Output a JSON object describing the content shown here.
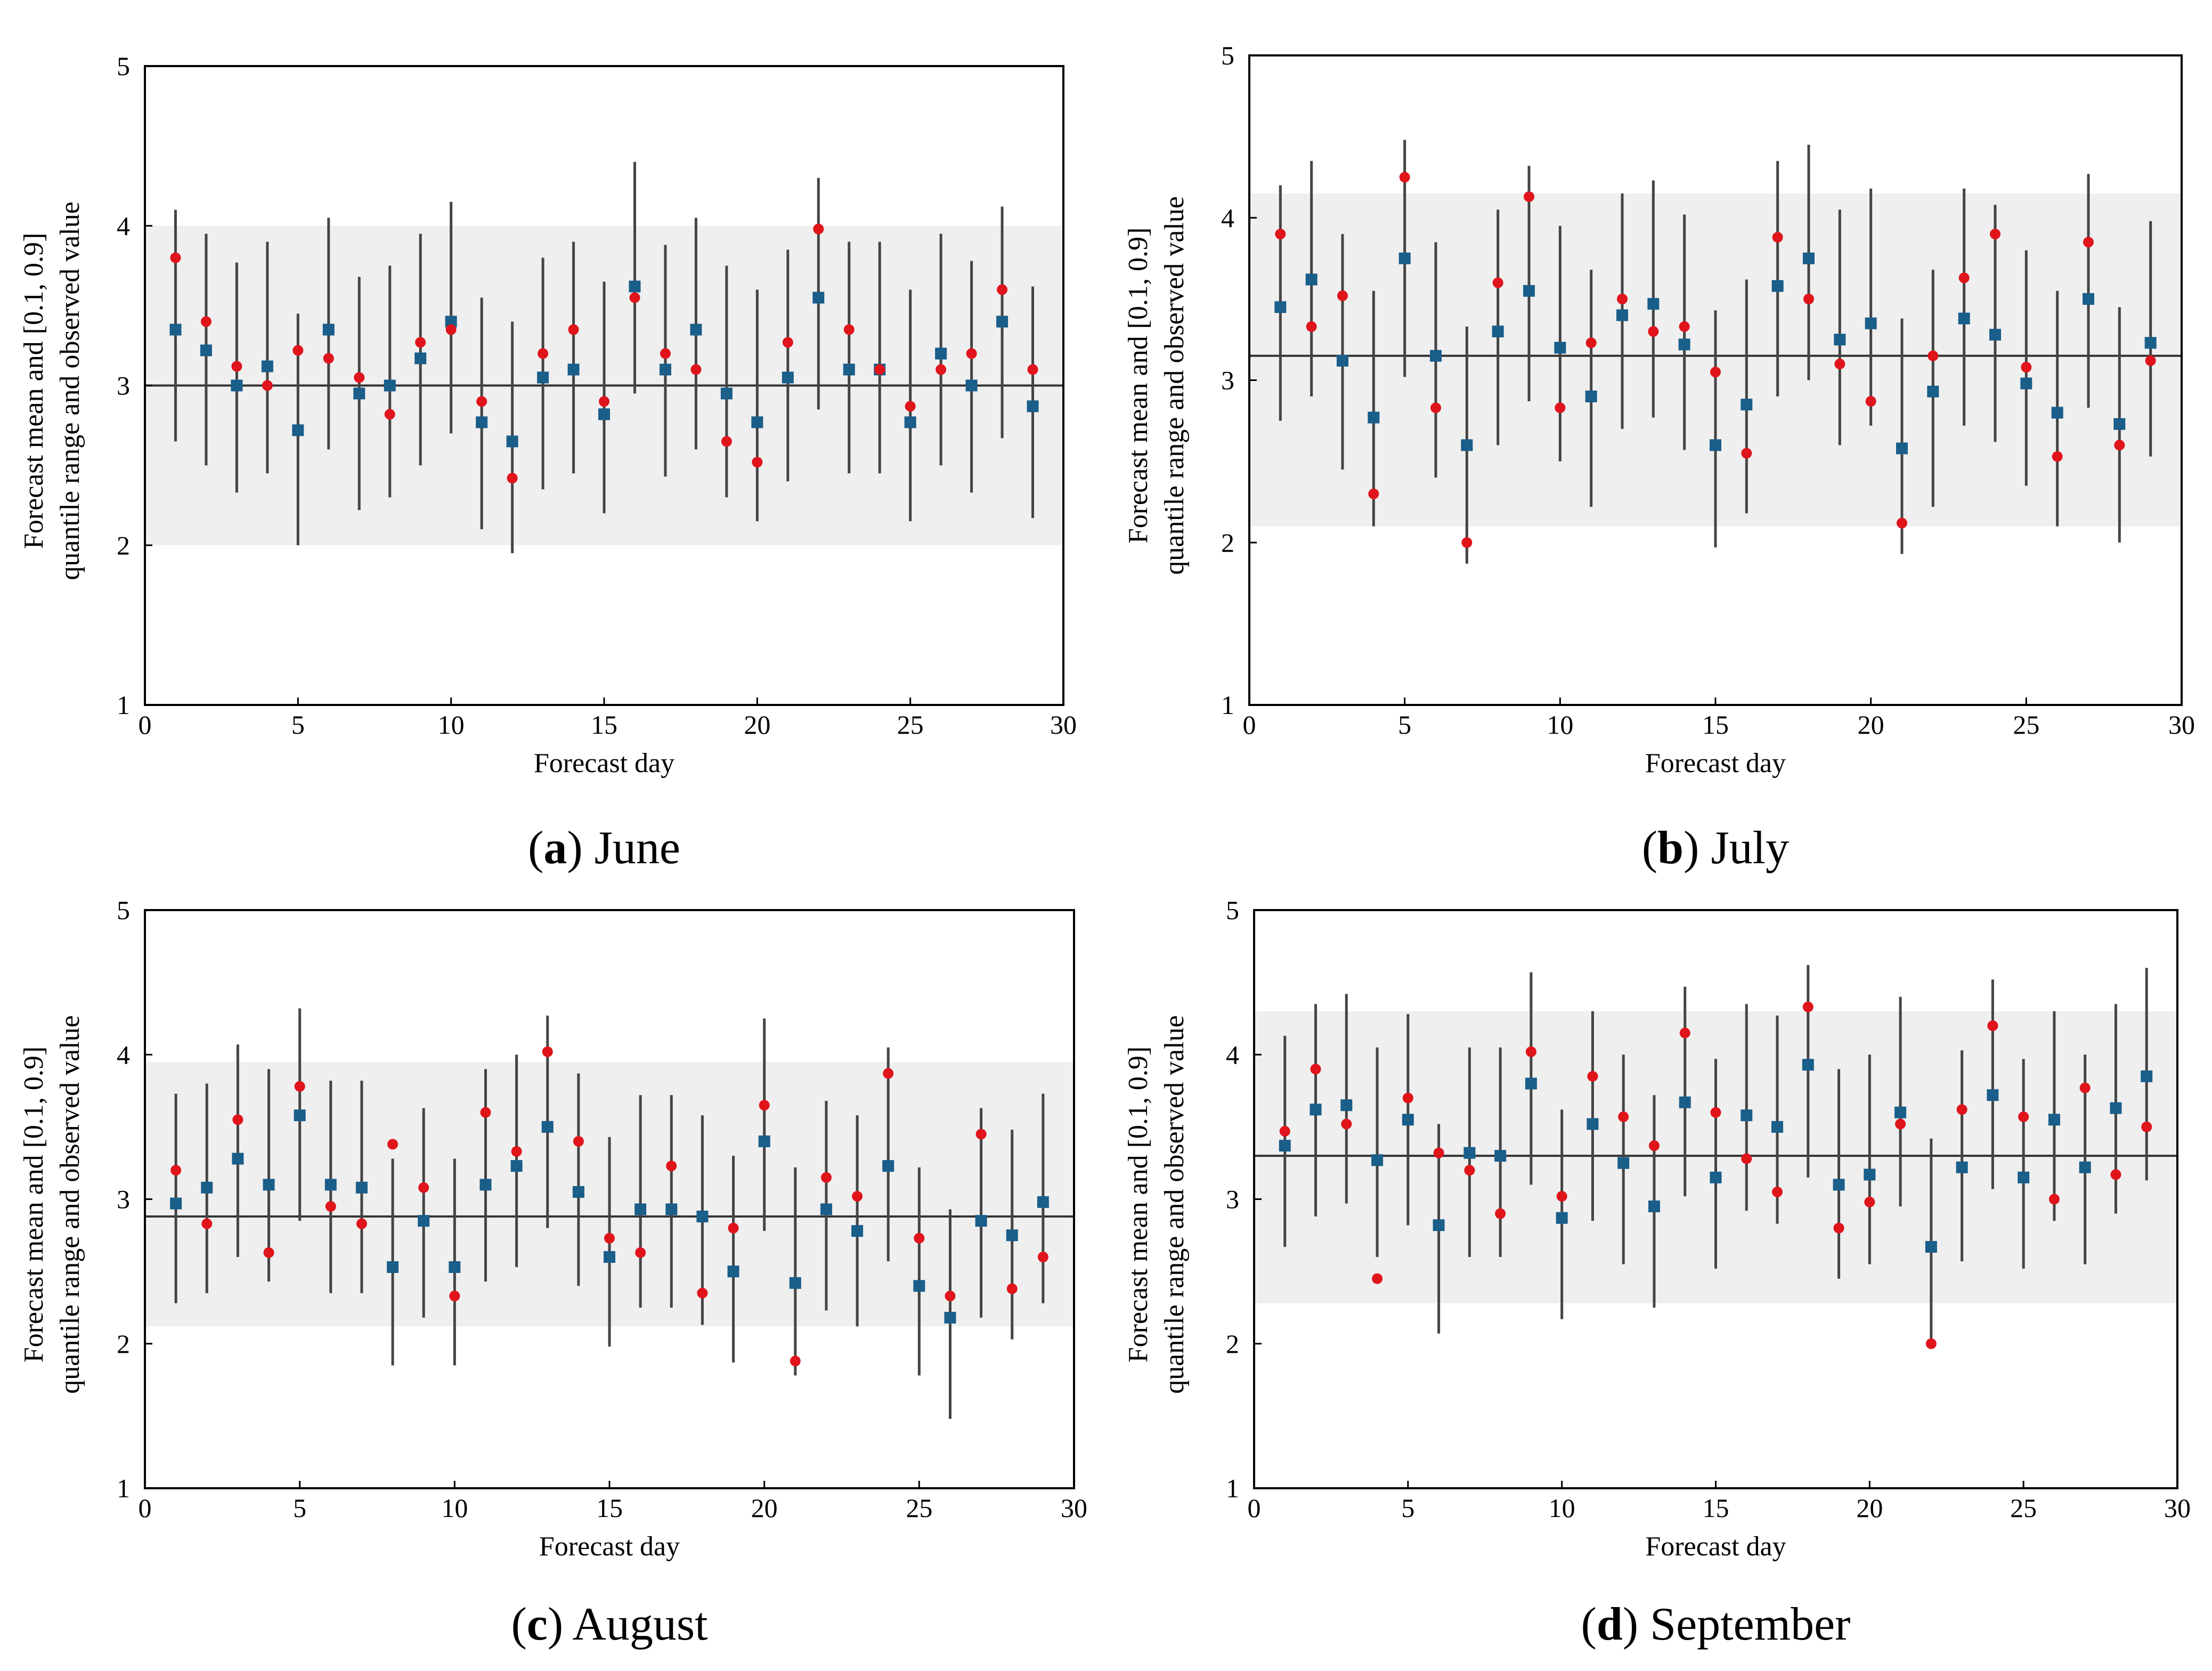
{
  "chart_data": [
    {
      "type": "scatter",
      "panel": "a",
      "caption_letter": "a",
      "caption_text": "June",
      "xlabel": "Forecast day",
      "ylabel_line1": "Forecast mean and [0.1, 0.9]",
      "ylabel_line2": "quantile range and observed value",
      "xlim": [
        0,
        30
      ],
      "ylim": [
        1,
        5
      ],
      "xticks": [
        0,
        5,
        10,
        15,
        20,
        25,
        30
      ],
      "yticks": [
        1,
        2,
        3,
        4,
        5
      ],
      "climatology_band": [
        2.0,
        4.0
      ],
      "climatology_mean": 3.0,
      "days": [
        1,
        2,
        3,
        4,
        5,
        6,
        7,
        8,
        9,
        10,
        11,
        12,
        13,
        14,
        15,
        16,
        17,
        18,
        19,
        20,
        21,
        22,
        23,
        24,
        25,
        26,
        27,
        28,
        29
      ],
      "forecast_mean": [
        3.35,
        3.22,
        3.0,
        3.12,
        2.72,
        3.35,
        2.95,
        3.0,
        3.17,
        3.4,
        2.77,
        2.65,
        3.05,
        3.1,
        2.82,
        3.62,
        3.1,
        3.35,
        2.95,
        2.77,
        3.05,
        3.55,
        3.1,
        3.1,
        2.77,
        3.2,
        3.0,
        3.4,
        2.87
      ],
      "q10": [
        2.65,
        2.5,
        2.33,
        2.45,
        2.0,
        2.6,
        2.22,
        2.3,
        2.5,
        2.7,
        2.1,
        1.95,
        2.35,
        2.45,
        2.2,
        2.95,
        2.43,
        2.6,
        2.3,
        2.15,
        2.4,
        2.85,
        2.45,
        2.45,
        2.15,
        2.5,
        2.33,
        2.67,
        2.17
      ],
      "q90": [
        4.1,
        3.95,
        3.77,
        3.9,
        3.45,
        4.05,
        3.68,
        3.75,
        3.95,
        4.15,
        3.55,
        3.4,
        3.8,
        3.9,
        3.65,
        4.4,
        3.88,
        4.05,
        3.75,
        3.6,
        3.85,
        4.3,
        3.9,
        3.9,
        3.6,
        3.95,
        3.78,
        4.12,
        3.62
      ],
      "observed": [
        3.8,
        3.4,
        3.12,
        3.0,
        3.22,
        3.17,
        3.05,
        2.82,
        3.27,
        3.35,
        2.9,
        2.42,
        3.2,
        3.35,
        2.9,
        3.55,
        3.2,
        3.1,
        2.65,
        2.52,
        3.27,
        3.98,
        3.35,
        3.1,
        2.87,
        3.1,
        3.2,
        3.6,
        3.1
      ],
      "colors": {
        "mean": "#1a5e8a",
        "observed": "#e0141b",
        "bar": "#444444",
        "band": "#efefef"
      }
    },
    {
      "type": "scatter",
      "panel": "b",
      "caption_letter": "b",
      "caption_text": "July",
      "xlabel": "Forecast day",
      "ylabel_line1": "Forecast mean and [0.1, 0.9]",
      "ylabel_line2": "quantile range and observed value",
      "xlim": [
        0,
        30
      ],
      "ylim": [
        1,
        5
      ],
      "xticks": [
        0,
        5,
        10,
        15,
        20,
        25,
        30
      ],
      "yticks": [
        1,
        2,
        3,
        4,
        5
      ],
      "climatology_band": [
        2.1,
        4.15
      ],
      "climatology_mean": 3.15,
      "days": [
        1,
        2,
        3,
        4,
        5,
        6,
        7,
        8,
        9,
        10,
        11,
        12,
        13,
        14,
        15,
        16,
        17,
        18,
        19,
        20,
        21,
        22,
        23,
        24,
        25,
        26,
        27,
        28,
        29
      ],
      "forecast_mean": [
        3.45,
        3.62,
        3.12,
        2.77,
        3.75,
        3.15,
        2.6,
        3.3,
        3.55,
        3.2,
        2.9,
        3.4,
        3.47,
        3.22,
        2.6,
        2.85,
        3.58,
        3.75,
        3.25,
        3.35,
        2.58,
        2.93,
        3.38,
        3.28,
        2.98,
        2.8,
        3.5,
        2.73,
        3.23
      ],
      "q10": [
        2.75,
        2.9,
        2.45,
        2.1,
        3.02,
        2.4,
        1.87,
        2.6,
        2.87,
        2.5,
        2.22,
        2.7,
        2.77,
        2.57,
        1.97,
        2.18,
        2.9,
        3.0,
        2.6,
        2.72,
        1.93,
        2.22,
        2.72,
        2.62,
        2.35,
        2.1,
        2.83,
        2.0,
        2.53
      ],
      "q90": [
        4.2,
        4.35,
        3.9,
        3.55,
        4.48,
        3.85,
        3.33,
        4.05,
        4.32,
        3.95,
        3.68,
        4.15,
        4.23,
        4.02,
        3.43,
        3.62,
        4.35,
        4.45,
        4.05,
        4.18,
        3.38,
        3.68,
        4.18,
        4.08,
        3.8,
        3.55,
        4.27,
        3.45,
        3.98
      ],
      "observed": [
        3.9,
        3.33,
        3.52,
        2.3,
        4.25,
        2.83,
        2.0,
        3.6,
        4.13,
        2.83,
        3.23,
        3.5,
        3.3,
        3.33,
        3.05,
        2.55,
        3.88,
        3.5,
        3.1,
        2.87,
        2.12,
        3.15,
        3.63,
        3.9,
        3.08,
        2.53,
        3.85,
        2.6,
        3.12
      ],
      "colors": {
        "mean": "#1a5e8a",
        "observed": "#e0141b",
        "bar": "#444444",
        "band": "#efefef"
      }
    },
    {
      "type": "scatter",
      "panel": "c",
      "caption_letter": "c",
      "caption_text": "August",
      "xlabel": "Forecast day",
      "ylabel_line1": "Forecast mean and [0.1, 0.9]",
      "ylabel_line2": "quantile range and observed value",
      "xlim": [
        0,
        30
      ],
      "ylim": [
        1,
        5
      ],
      "xticks": [
        0,
        5,
        10,
        15,
        20,
        25,
        30
      ],
      "yticks": [
        1,
        2,
        3,
        4,
        5
      ],
      "climatology_band": [
        2.12,
        3.95
      ],
      "climatology_mean": 2.88,
      "days": [
        1,
        2,
        3,
        4,
        5,
        6,
        7,
        8,
        9,
        10,
        11,
        12,
        13,
        14,
        15,
        16,
        17,
        18,
        19,
        20,
        21,
        22,
        23,
        24,
        25,
        26,
        27,
        28,
        29
      ],
      "forecast_mean": [
        2.97,
        3.08,
        3.28,
        3.1,
        3.58,
        3.1,
        3.08,
        2.53,
        2.85,
        2.53,
        3.1,
        3.23,
        3.5,
        3.05,
        2.6,
        2.93,
        2.93,
        2.88,
        2.5,
        3.4,
        2.42,
        2.93,
        2.78,
        3.23,
        2.4,
        2.18,
        2.85,
        2.75,
        2.98
      ],
      "q10": [
        2.28,
        2.35,
        2.6,
        2.43,
        2.85,
        2.35,
        2.35,
        1.85,
        2.18,
        1.85,
        2.43,
        2.53,
        2.8,
        2.4,
        1.98,
        2.25,
        2.25,
        2.13,
        1.87,
        2.78,
        1.78,
        2.23,
        2.12,
        2.57,
        1.78,
        1.48,
        2.18,
        2.03,
        2.28
      ],
      "q90": [
        3.73,
        3.8,
        4.07,
        3.9,
        4.32,
        3.82,
        3.82,
        3.28,
        3.63,
        3.28,
        3.9,
        4.0,
        4.27,
        3.87,
        3.43,
        3.72,
        3.72,
        3.58,
        3.3,
        4.25,
        3.22,
        3.68,
        3.58,
        4.05,
        3.22,
        2.93,
        3.63,
        3.48,
        3.73
      ],
      "observed": [
        3.2,
        2.83,
        3.55,
        2.63,
        3.78,
        2.95,
        2.83,
        3.38,
        3.08,
        2.33,
        3.6,
        3.33,
        4.02,
        3.4,
        2.73,
        2.63,
        3.23,
        2.35,
        2.8,
        3.65,
        1.88,
        3.15,
        3.02,
        3.87,
        2.73,
        2.33,
        3.45,
        2.38,
        2.6
      ],
      "colors": {
        "mean": "#1a5e8a",
        "observed": "#e0141b",
        "bar": "#444444",
        "band": "#efefef"
      }
    },
    {
      "type": "scatter",
      "panel": "d",
      "caption_letter": "d",
      "caption_text": "September",
      "xlabel": "Forecast day",
      "ylabel_line1": "Forecast mean and [0.1, 0.9]",
      "ylabel_line2": "quantile range and observed value",
      "xlim": [
        0,
        30
      ],
      "ylim": [
        1,
        5
      ],
      "xticks": [
        0,
        5,
        10,
        15,
        20,
        25,
        30
      ],
      "yticks": [
        1,
        2,
        3,
        4,
        5
      ],
      "climatology_band": [
        2.28,
        4.3
      ],
      "climatology_mean": 3.3,
      "days": [
        1,
        2,
        3,
        4,
        5,
        6,
        7,
        8,
        9,
        10,
        11,
        12,
        13,
        14,
        15,
        16,
        17,
        18,
        19,
        20,
        21,
        22,
        23,
        24,
        25,
        26,
        27,
        28,
        29
      ],
      "forecast_mean": [
        3.37,
        3.62,
        3.65,
        3.27,
        3.55,
        2.82,
        3.32,
        3.3,
        3.8,
        2.87,
        3.52,
        3.25,
        2.95,
        3.67,
        3.15,
        3.58,
        3.5,
        3.93,
        3.1,
        3.17,
        3.6,
        2.67,
        3.22,
        3.72,
        3.15,
        3.55,
        3.22,
        3.63,
        3.85
      ],
      "q10": [
        2.67,
        2.88,
        2.97,
        2.6,
        2.82,
        2.07,
        2.6,
        2.6,
        3.1,
        2.17,
        2.85,
        2.55,
        2.25,
        3.02,
        2.52,
        2.92,
        2.83,
        3.15,
        2.45,
        2.55,
        2.95,
        2.0,
        2.57,
        3.07,
        2.52,
        2.85,
        2.55,
        2.9,
        3.13
      ],
      "q90": [
        4.13,
        4.35,
        4.42,
        4.05,
        4.28,
        3.52,
        4.05,
        4.05,
        4.57,
        3.62,
        4.3,
        4.0,
        3.72,
        4.47,
        3.97,
        4.35,
        4.27,
        4.62,
        3.9,
        4.0,
        4.4,
        3.42,
        4.03,
        4.52,
        3.97,
        4.3,
        4.0,
        4.35,
        4.6
      ],
      "observed": [
        3.47,
        3.9,
        3.52,
        2.45,
        3.7,
        3.32,
        3.2,
        2.9,
        4.02,
        3.02,
        3.85,
        3.57,
        3.37,
        4.15,
        3.6,
        3.28,
        3.05,
        4.33,
        2.8,
        2.98,
        3.52,
        2.0,
        3.62,
        4.2,
        3.57,
        3.0,
        3.77,
        3.17,
        3.5
      ],
      "colors": {
        "mean": "#1a5e8a",
        "observed": "#e0141b",
        "bar": "#444444",
        "band": "#efefef"
      }
    }
  ]
}
